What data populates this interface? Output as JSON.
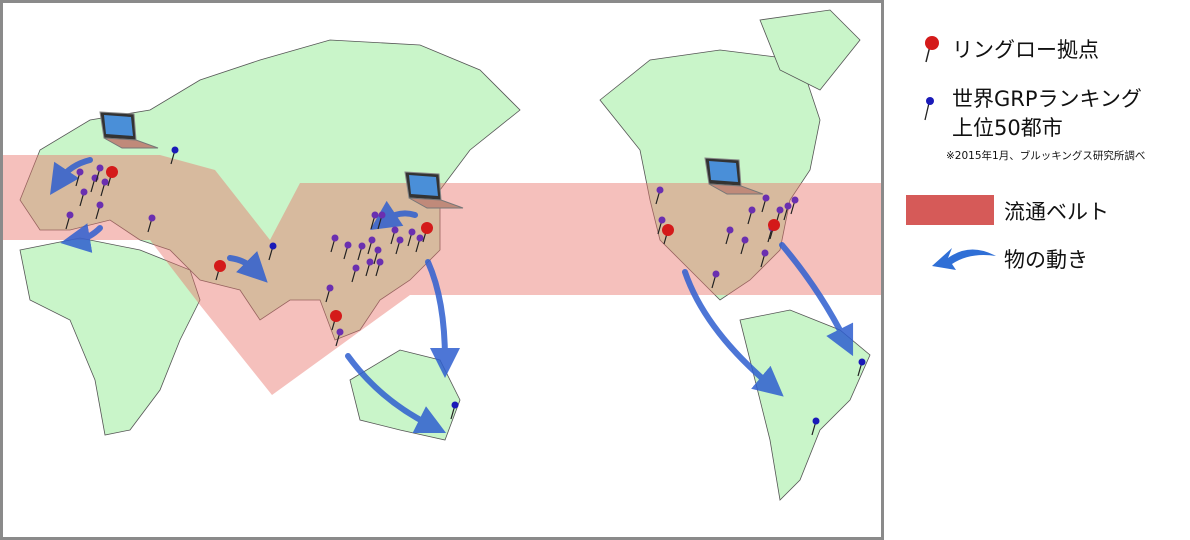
{
  "legend": {
    "base_label": "リングロー拠点",
    "city_label_line1": "世界GRPランキング",
    "city_label_line2": "上位50都市",
    "city_note": "※2015年1月、ブルッキングス研究所調べ",
    "belt_label": "流通ベルト",
    "flow_label": "物の動き"
  },
  "colors": {
    "land": "#c9f5c9",
    "sea": "#ffffff",
    "belt": "#e8736a",
    "base_pin": "#d41a1a",
    "city_pin": "#1a1ab8",
    "top_city_pin": "#6a2fb0",
    "arrow": "#2f5fd0",
    "frame": "#8a8a8a"
  },
  "icons": {
    "base": "red-pin-icon",
    "city": "blue-pin-icon",
    "flow": "curved-arrow-icon",
    "hub": "laptop-icon"
  }
}
